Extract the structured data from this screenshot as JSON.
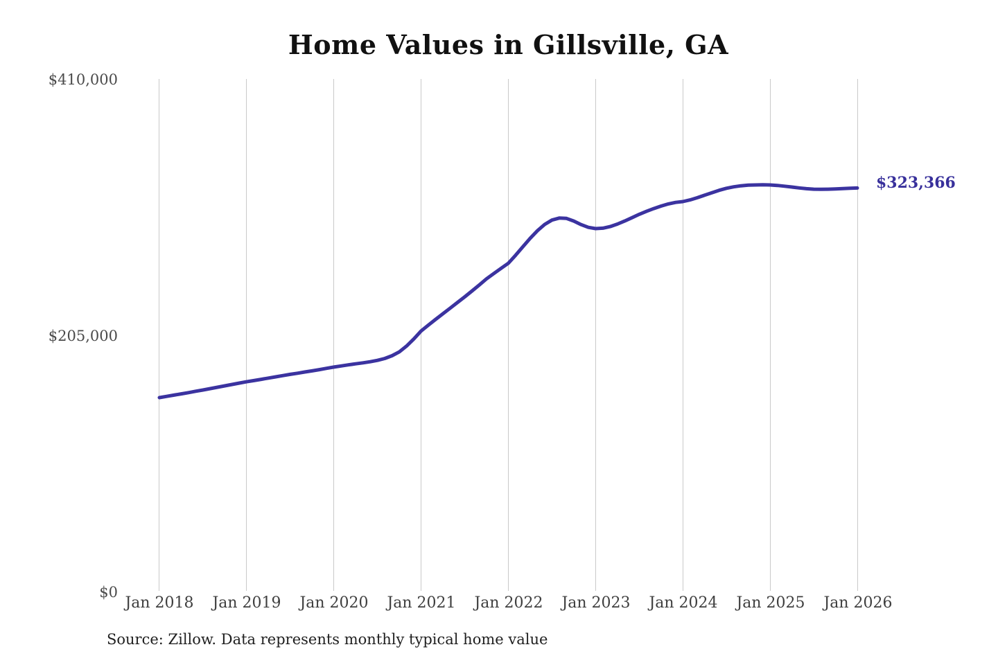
{
  "chart": {
    "title": "Home Values in Gillsville, GA",
    "end_label": "$323,366",
    "source_note": "Source: Zillow. Data represents monthly typical home value"
  },
  "colors": {
    "line": "#3b33a0",
    "accent_text": "#38309b",
    "gridline": "#c9c9c9",
    "axis_text": "#4a4a4a",
    "title_text": "#111111"
  },
  "chart_data": {
    "type": "line",
    "title": "Home Values in Gillsville, GA",
    "series_name": "Monthly typical home value (Zillow)",
    "x_unit": "month",
    "x_start": "2018-01",
    "x_end": "2026-01",
    "x_tick_labels": [
      "Jan 2018",
      "Jan 2019",
      "Jan 2020",
      "Jan 2021",
      "Jan 2022",
      "Jan 2023",
      "Jan 2024",
      "Jan 2025",
      "Jan 2026"
    ],
    "y_tick_labels": [
      "$0",
      "$205,000",
      "$410,000"
    ],
    "ylim": [
      0,
      410000
    ],
    "grid": "vertical-only",
    "legend": "none",
    "line_color": "#3b33a0",
    "final_value": 323366,
    "final_value_label": "$323,366",
    "values": [
      155700,
      156700,
      157700,
      158700,
      159700,
      160800,
      161800,
      162900,
      164000,
      165100,
      166200,
      167300,
      168400,
      169300,
      170300,
      171300,
      172300,
      173300,
      174300,
      175200,
      176200,
      177100,
      178100,
      179100,
      180100,
      181000,
      181900,
      182700,
      183500,
      184400,
      185500,
      187000,
      189200,
      192300,
      196900,
      202600,
      209000,
      213700,
      218300,
      222800,
      227300,
      231800,
      236300,
      241000,
      245800,
      250700,
      254900,
      259100,
      263200,
      269600,
      276400,
      283100,
      289200,
      294200,
      297700,
      299300,
      299000,
      296900,
      294100,
      291900,
      290900,
      291200,
      292500,
      294500,
      296900,
      299600,
      302300,
      304700,
      306900,
      308900,
      310600,
      311800,
      312500,
      313800,
      315600,
      317600,
      319600,
      321500,
      323100,
      324300,
      325100,
      325600,
      325800,
      325900,
      325800,
      325400,
      324800,
      324100,
      323400,
      322800,
      322400,
      322300,
      322400,
      322600,
      322900,
      323100,
      323366
    ]
  }
}
